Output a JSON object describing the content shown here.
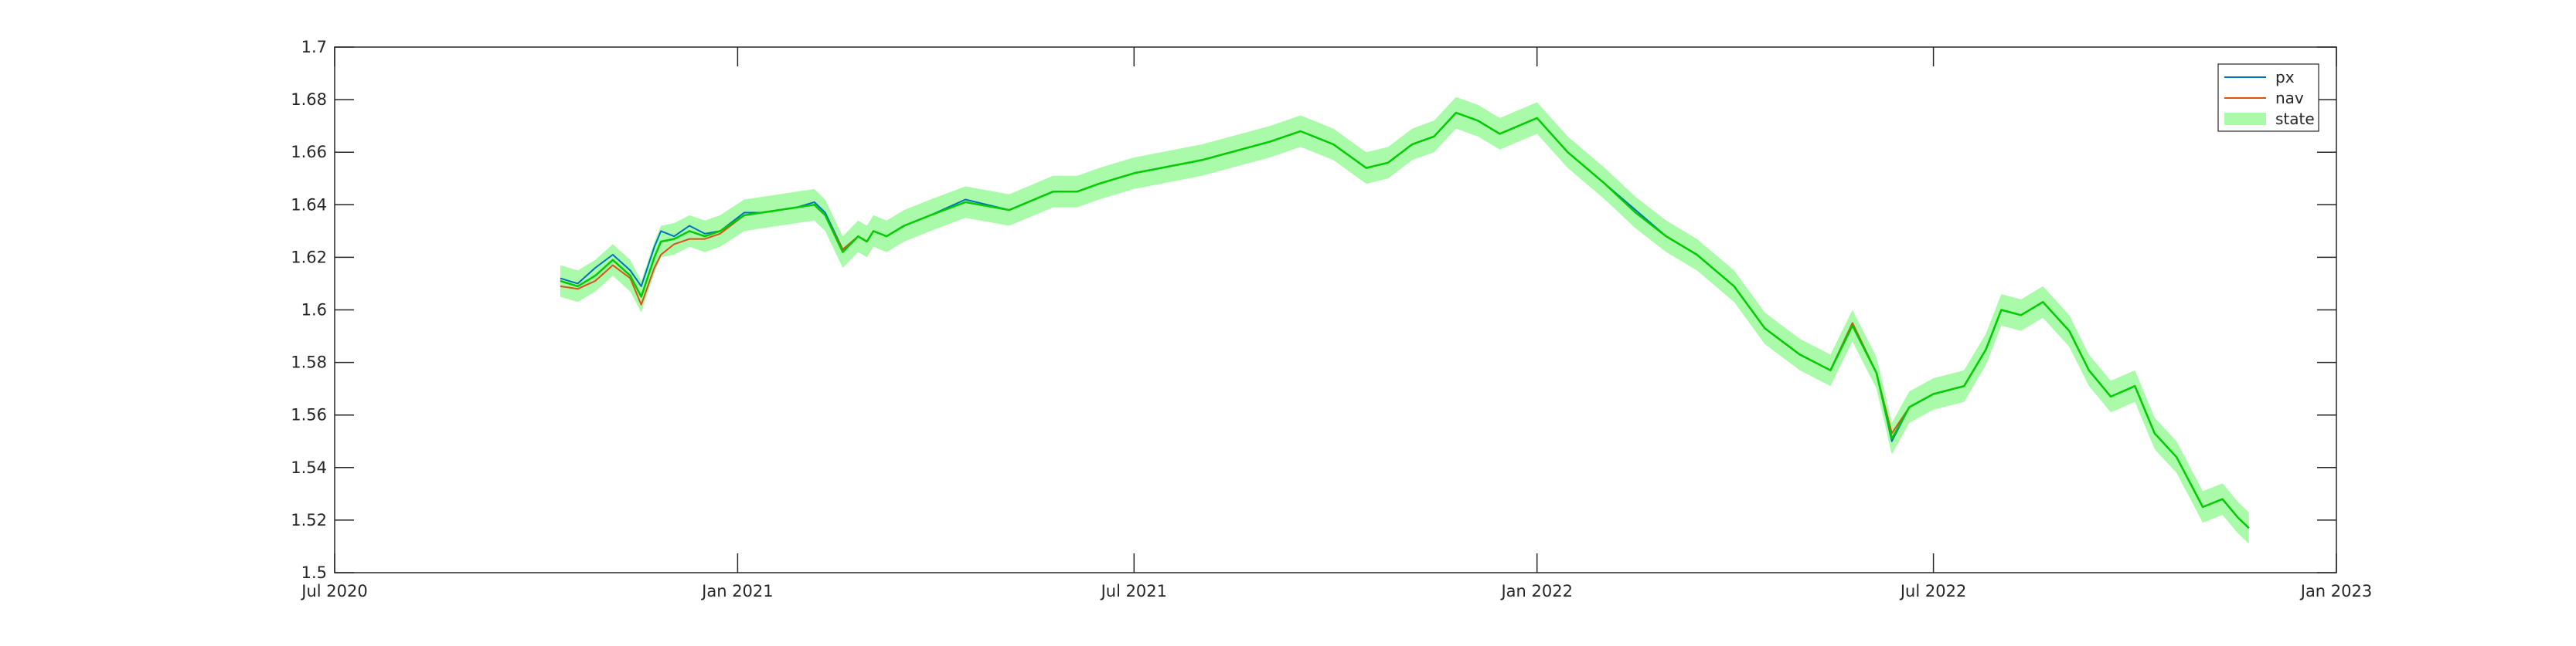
{
  "chart_data": {
    "type": "line",
    "title": "",
    "xlabel": "",
    "ylabel": "",
    "xlim": [
      "2020-07-01",
      "2023-01-01"
    ],
    "ylim": [
      1.5,
      1.7
    ],
    "x_ticks": [
      "2020-07-01",
      "2021-01-01",
      "2021-07-01",
      "2022-01-01",
      "2022-07-01",
      "2023-01-01"
    ],
    "x_tick_labels": [
      "Jul 2020",
      "Jan 2021",
      "Jul 2021",
      "Jan 2022",
      "Jul 2022",
      "Jan 2023"
    ],
    "y_ticks": [
      1.5,
      1.52,
      1.54,
      1.56,
      1.58,
      1.6,
      1.62,
      1.64,
      1.66,
      1.68,
      1.7
    ],
    "y_tick_labels": [
      "1.5",
      "1.52",
      "1.54",
      "1.56",
      "1.58",
      "1.6",
      "1.62",
      "1.64",
      "1.66",
      "1.68",
      "1.7"
    ],
    "grid": false,
    "legend_position": "top-right",
    "colors": {
      "px": "#0072BD",
      "nav": "#D95319",
      "state_line": "#00CC00",
      "state_band": "#A9FBA9"
    },
    "series": [
      {
        "name": "px",
        "x": [
          "2020-10-12",
          "2020-10-20",
          "2020-10-28",
          "2020-11-05",
          "2020-11-13",
          "2020-11-18",
          "2020-11-24",
          "2020-11-27",
          "2020-12-03",
          "2020-12-10",
          "2020-12-17",
          "2020-12-24",
          "2021-01-04",
          "2021-01-12",
          "2021-01-20",
          "2021-01-28",
          "2021-02-05",
          "2021-02-10",
          "2021-02-18",
          "2021-02-25",
          "2021-03-01",
          "2021-03-04",
          "2021-03-10",
          "2021-03-18",
          "2021-03-30",
          "2021-04-15",
          "2021-05-05",
          "2021-05-25",
          "2021-06-05",
          "2021-06-15",
          "2021-07-01",
          "2021-08-01",
          "2021-09-01",
          "2021-09-15",
          "2021-09-30",
          "2021-10-15",
          "2021-10-25",
          "2021-11-05",
          "2021-11-15",
          "2021-11-25",
          "2021-12-05",
          "2021-12-15",
          "2022-01-01",
          "2022-01-15",
          "2022-02-01",
          "2022-02-15",
          "2022-03-01",
          "2022-03-15",
          "2022-04-01",
          "2022-04-15",
          "2022-05-01",
          "2022-05-15",
          "2022-05-25",
          "2022-06-05",
          "2022-06-12",
          "2022-06-20",
          "2022-07-01",
          "2022-07-15",
          "2022-07-25",
          "2022-08-01",
          "2022-08-10",
          "2022-08-20",
          "2022-09-01",
          "2022-09-10",
          "2022-09-20",
          "2022-10-01",
          "2022-10-10",
          "2022-10-20",
          "2022-11-01",
          "2022-11-10",
          "2022-11-17",
          "2022-11-22"
        ],
        "values": [
          1.612,
          1.61,
          1.616,
          1.621,
          1.615,
          1.609,
          1.624,
          1.63,
          1.628,
          1.632,
          1.629,
          1.63,
          1.637,
          1.637,
          1.638,
          1.639,
          1.641,
          1.637,
          1.623,
          1.628,
          1.626,
          1.63,
          1.628,
          1.632,
          1.636,
          1.642,
          1.638,
          1.645,
          1.645,
          1.648,
          1.652,
          1.657,
          1.664,
          1.668,
          1.663,
          1.654,
          1.656,
          1.663,
          1.666,
          1.675,
          1.672,
          1.667,
          1.673,
          1.66,
          1.648,
          1.638,
          1.628,
          1.621,
          1.609,
          1.593,
          1.583,
          1.577,
          1.595,
          1.576,
          1.55,
          1.563,
          1.568,
          1.571,
          1.585,
          1.6,
          1.598,
          1.603,
          1.592,
          1.577,
          1.567,
          1.571,
          1.553,
          1.544,
          1.525,
          1.528,
          1.521,
          1.517
        ]
      },
      {
        "name": "nav",
        "x": [
          "2020-10-12",
          "2020-10-20",
          "2020-10-28",
          "2020-11-05",
          "2020-11-13",
          "2020-11-18",
          "2020-11-24",
          "2020-11-27",
          "2020-12-03",
          "2020-12-10",
          "2020-12-17",
          "2020-12-24",
          "2021-01-04",
          "2021-01-12",
          "2021-01-20",
          "2021-01-28",
          "2021-02-05",
          "2021-02-10",
          "2021-02-18",
          "2021-02-25",
          "2021-03-01",
          "2021-03-04",
          "2021-03-10",
          "2021-03-18",
          "2021-03-30",
          "2021-04-15",
          "2021-05-05",
          "2021-05-25",
          "2021-06-05",
          "2021-06-15",
          "2021-07-01",
          "2021-08-01",
          "2021-09-01",
          "2021-09-15",
          "2021-09-30",
          "2021-10-15",
          "2021-10-25",
          "2021-11-05",
          "2021-11-15",
          "2021-11-25",
          "2021-12-05",
          "2021-12-15",
          "2022-01-01",
          "2022-01-15",
          "2022-02-01",
          "2022-02-15",
          "2022-03-01",
          "2022-03-15",
          "2022-04-01",
          "2022-04-15",
          "2022-05-01",
          "2022-05-15",
          "2022-05-25",
          "2022-06-05",
          "2022-06-12",
          "2022-06-20",
          "2022-07-01",
          "2022-07-15",
          "2022-07-25",
          "2022-08-01",
          "2022-08-10",
          "2022-08-20",
          "2022-09-01",
          "2022-09-10",
          "2022-09-20",
          "2022-10-01",
          "2022-10-10",
          "2022-10-20",
          "2022-11-01",
          "2022-11-10",
          "2022-11-17",
          "2022-11-22"
        ],
        "values": [
          1.609,
          1.608,
          1.611,
          1.617,
          1.612,
          1.602,
          1.616,
          1.621,
          1.625,
          1.627,
          1.627,
          1.629,
          1.636,
          1.637,
          1.638,
          1.639,
          1.64,
          1.636,
          1.623,
          1.628,
          1.626,
          1.63,
          1.628,
          1.632,
          1.636,
          1.641,
          1.638,
          1.645,
          1.645,
          1.648,
          1.652,
          1.657,
          1.664,
          1.668,
          1.663,
          1.654,
          1.656,
          1.663,
          1.666,
          1.675,
          1.672,
          1.667,
          1.673,
          1.66,
          1.648,
          1.637,
          1.628,
          1.621,
          1.609,
          1.593,
          1.583,
          1.577,
          1.595,
          1.576,
          1.553,
          1.563,
          1.568,
          1.571,
          1.585,
          1.6,
          1.598,
          1.603,
          1.592,
          1.577,
          1.567,
          1.571,
          1.553,
          1.544,
          1.525,
          1.528,
          1.521,
          1.517
        ]
      },
      {
        "name": "state",
        "x": [
          "2020-10-12",
          "2020-10-20",
          "2020-10-28",
          "2020-11-05",
          "2020-11-13",
          "2020-11-18",
          "2020-11-24",
          "2020-11-27",
          "2020-12-03",
          "2020-12-10",
          "2020-12-17",
          "2020-12-24",
          "2021-01-04",
          "2021-01-12",
          "2021-01-20",
          "2021-01-28",
          "2021-02-05",
          "2021-02-10",
          "2021-02-18",
          "2021-02-25",
          "2021-03-01",
          "2021-03-04",
          "2021-03-10",
          "2021-03-18",
          "2021-03-30",
          "2021-04-15",
          "2021-05-05",
          "2021-05-25",
          "2021-06-05",
          "2021-06-15",
          "2021-07-01",
          "2021-08-01",
          "2021-09-01",
          "2021-09-15",
          "2021-09-30",
          "2021-10-15",
          "2021-10-25",
          "2021-11-05",
          "2021-11-15",
          "2021-11-25",
          "2021-12-05",
          "2021-12-15",
          "2022-01-01",
          "2022-01-15",
          "2022-02-01",
          "2022-02-15",
          "2022-03-01",
          "2022-03-15",
          "2022-04-01",
          "2022-04-15",
          "2022-05-01",
          "2022-05-15",
          "2022-05-25",
          "2022-06-05",
          "2022-06-12",
          "2022-06-20",
          "2022-07-01",
          "2022-07-15",
          "2022-07-25",
          "2022-08-01",
          "2022-08-10",
          "2022-08-20",
          "2022-09-01",
          "2022-09-10",
          "2022-09-20",
          "2022-10-01",
          "2022-10-10",
          "2022-10-20",
          "2022-11-01",
          "2022-11-10",
          "2022-11-17",
          "2022-11-22"
        ],
        "values": [
          1.611,
          1.609,
          1.613,
          1.619,
          1.613,
          1.605,
          1.62,
          1.626,
          1.627,
          1.63,
          1.628,
          1.63,
          1.636,
          1.637,
          1.638,
          1.639,
          1.64,
          1.636,
          1.622,
          1.628,
          1.626,
          1.63,
          1.628,
          1.632,
          1.636,
          1.641,
          1.638,
          1.645,
          1.645,
          1.648,
          1.652,
          1.657,
          1.664,
          1.668,
          1.663,
          1.654,
          1.656,
          1.663,
          1.666,
          1.675,
          1.672,
          1.667,
          1.673,
          1.66,
          1.648,
          1.637,
          1.628,
          1.621,
          1.609,
          1.593,
          1.583,
          1.577,
          1.594,
          1.576,
          1.551,
          1.563,
          1.568,
          1.571,
          1.585,
          1.6,
          1.598,
          1.603,
          1.592,
          1.577,
          1.567,
          1.571,
          1.553,
          1.544,
          1.525,
          1.528,
          1.521,
          1.517
        ],
        "band_halfwidth": 0.006
      }
    ]
  }
}
